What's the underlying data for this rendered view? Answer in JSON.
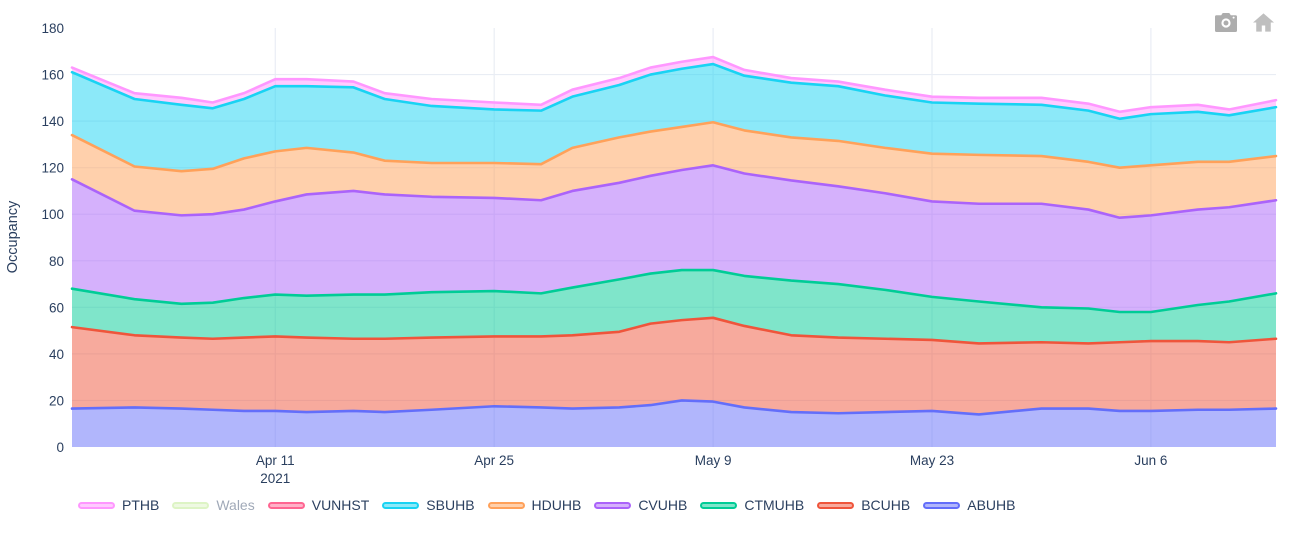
{
  "chart": {
    "ylabel": "Occupancy",
    "text_color": "#2a3f5f",
    "grid_color": "#e9edf4",
    "background": "#ffffff"
  },
  "modebar": {
    "icons": [
      {
        "name": "camera",
        "color": "#adadad"
      },
      {
        "name": "home",
        "color": "#bfbfbf"
      }
    ]
  },
  "chart_data": {
    "type": "area",
    "stacked": true,
    "title": "",
    "xlabel": "",
    "ylabel": "Occupancy",
    "ylim": [
      0,
      180
    ],
    "x_range_days": [
      0,
      77
    ],
    "grid": true,
    "legend_position": "bottom",
    "y_ticks": [
      0,
      20,
      40,
      60,
      80,
      100,
      120,
      140,
      160,
      180
    ],
    "x_ticks": [
      {
        "day": 13,
        "label": "Apr 11",
        "sublabel": "2021"
      },
      {
        "day": 27,
        "label": "Apr 25",
        "sublabel": ""
      },
      {
        "day": 41,
        "label": "May 9",
        "sublabel": ""
      },
      {
        "day": 55,
        "label": "May 23",
        "sublabel": ""
      },
      {
        "day": 69,
        "label": "Jun 6",
        "sublabel": ""
      }
    ],
    "x_dates": [
      "2021-03-29",
      "2021-04-02",
      "2021-04-05",
      "2021-04-07",
      "2021-04-09",
      "2021-04-11",
      "2021-04-13",
      "2021-04-16",
      "2021-04-18",
      "2021-04-21",
      "2021-04-25",
      "2021-04-28",
      "2021-04-30",
      "2021-05-03",
      "2021-05-05",
      "2021-05-07",
      "2021-05-09",
      "2021-05-11",
      "2021-05-14",
      "2021-05-17",
      "2021-05-20",
      "2021-05-23",
      "2021-05-26",
      "2021-05-30",
      "2021-06-02",
      "2021-06-04",
      "2021-06-06",
      "2021-06-09",
      "2021-06-11",
      "2021-06-14"
    ],
    "x_days": [
      0,
      4,
      7,
      9,
      11,
      13,
      15,
      18,
      20,
      23,
      27,
      30,
      32,
      35,
      37,
      39,
      41,
      43,
      46,
      49,
      52,
      55,
      58,
      62,
      65,
      67,
      69,
      72,
      74,
      77
    ],
    "series": [
      {
        "name": "ABUHB",
        "color": "#636EFA",
        "values": [
          16.5,
          17,
          16.5,
          16,
          15.5,
          15.5,
          15,
          15.5,
          15,
          16,
          17.5,
          17,
          16.5,
          17,
          18,
          20,
          19.5,
          17,
          15,
          14.5,
          15,
          15.5,
          14,
          16.5,
          16.5,
          15.5,
          15.5,
          16,
          16,
          16.5
        ]
      },
      {
        "name": "BCUHB",
        "color": "#EF553B",
        "values": [
          35,
          31,
          30.5,
          30.5,
          31.5,
          32,
          32,
          31,
          31.5,
          31,
          30,
          30.5,
          31.5,
          32.5,
          35,
          34.5,
          36,
          35,
          33,
          32.5,
          31.5,
          30.5,
          30.5,
          28.5,
          28,
          29.5,
          30,
          29.5,
          29,
          30
        ]
      },
      {
        "name": "CTMUHB",
        "color": "#00CC96",
        "values": [
          16.5,
          15.5,
          14.5,
          15.5,
          17,
          18,
          18,
          19,
          19,
          19.5,
          19.5,
          18.5,
          20.5,
          22.5,
          21.5,
          21.5,
          20.5,
          21.5,
          23.5,
          23,
          21,
          18.5,
          18,
          15,
          15,
          13,
          12.5,
          15.5,
          17.5,
          19.5
        ]
      },
      {
        "name": "CVUHB",
        "color": "#AB63FA",
        "values": [
          47,
          38,
          38,
          38,
          38,
          40,
          43.5,
          44.5,
          43,
          41,
          40,
          40,
          41.5,
          41.5,
          42,
          43,
          45,
          44,
          43,
          42,
          41.5,
          41,
          42,
          44.5,
          42.5,
          40.5,
          41.5,
          41,
          40.5,
          40
        ]
      },
      {
        "name": "HDUHB",
        "color": "#FFA15A",
        "values": [
          19,
          19,
          19,
          19.5,
          22,
          21.5,
          20,
          16.5,
          14.5,
          14.5,
          15,
          15.5,
          18.5,
          19.5,
          19,
          18.5,
          18.5,
          18.5,
          18.5,
          19.5,
          19.5,
          20.5,
          21,
          20.5,
          20.5,
          21.5,
          21.5,
          20.5,
          19.5,
          19
        ]
      },
      {
        "name": "SBUHB",
        "color": "#19D3F3",
        "values": [
          27,
          29,
          28.5,
          26,
          25.5,
          28,
          26.5,
          28,
          26.5,
          24.5,
          23,
          23,
          22,
          22.5,
          24.5,
          25,
          25,
          23.5,
          23.5,
          23.5,
          22.5,
          22,
          22,
          22,
          22,
          21,
          22,
          21.5,
          20,
          21
        ]
      },
      {
        "name": "VUNHST",
        "color": "#FF6692",
        "values": [
          0,
          0,
          0,
          0,
          0,
          0,
          0,
          0,
          0,
          0,
          0,
          0,
          0,
          0,
          0,
          0,
          0,
          0,
          0,
          0,
          0,
          0,
          0,
          0,
          0,
          0,
          0,
          0,
          0,
          0
        ]
      },
      {
        "name": "Wales",
        "color": "#B6E880",
        "hidden": true,
        "values": []
      },
      {
        "name": "PTHB",
        "color": "#FF97FF",
        "values": [
          2,
          2.5,
          3,
          2.5,
          2.5,
          3,
          3,
          2.5,
          2.5,
          3,
          3,
          2.5,
          3,
          3,
          3,
          3,
          3,
          2.5,
          2,
          2,
          2.5,
          2.5,
          2.5,
          3,
          3,
          3,
          3,
          3,
          2.5,
          3
        ]
      }
    ],
    "legend": [
      {
        "name": "PTHB",
        "muted": false
      },
      {
        "name": "Wales",
        "muted": true
      },
      {
        "name": "VUNHST",
        "muted": false
      },
      {
        "name": "SBUHB",
        "muted": false
      },
      {
        "name": "HDUHB",
        "muted": false
      },
      {
        "name": "CVUHB",
        "muted": false
      },
      {
        "name": "CTMUHB",
        "muted": false
      },
      {
        "name": "BCUHB",
        "muted": false
      },
      {
        "name": "ABUHB",
        "muted": false
      }
    ]
  }
}
